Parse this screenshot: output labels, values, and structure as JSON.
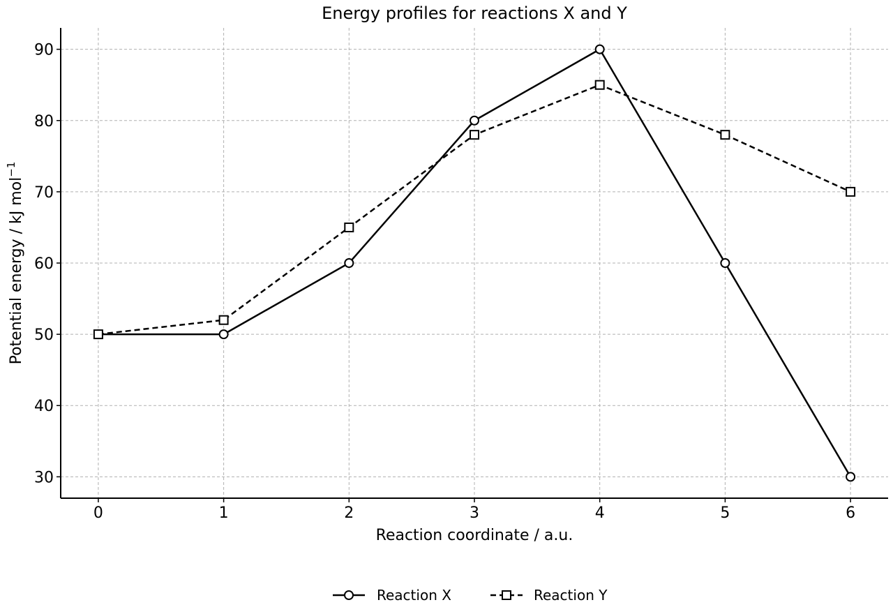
{
  "chart_data": {
    "type": "line",
    "title": "Energy profiles for reactions X and Y",
    "xlabel": "Reaction coordinate / a.u.",
    "ylabel_main": "Potential energy / kJ mol",
    "ylabel_sup": "−1",
    "x": [
      0,
      1,
      2,
      3,
      4,
      5,
      6
    ],
    "xlim": [
      -0.3,
      6.3
    ],
    "ylim": [
      27,
      93
    ],
    "xticks": [
      "0",
      "1",
      "2",
      "3",
      "4",
      "5",
      "6"
    ],
    "yticks": [
      30,
      40,
      50,
      60,
      70,
      80,
      90
    ],
    "grid": true,
    "legend_position": "bottom-center",
    "series": [
      {
        "name": "Reaction X",
        "values": [
          50,
          50,
          60,
          80,
          90,
          60,
          30
        ],
        "marker": "circle",
        "line_style": "solid",
        "color": "#000000"
      },
      {
        "name": "Reaction Y",
        "values": [
          50,
          52,
          65,
          78,
          85,
          78,
          70
        ],
        "marker": "square",
        "line_style": "dashed",
        "color": "#000000"
      }
    ]
  }
}
